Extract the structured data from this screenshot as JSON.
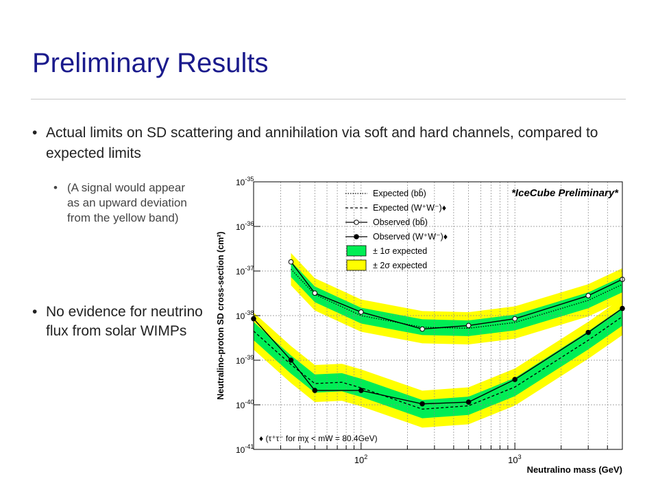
{
  "slide": {
    "title": "Preliminary Results",
    "bullets": [
      {
        "text": "Actual limits on SD scattering and annihilation via soft and hard channels, compared to expected limits"
      },
      {
        "text": "(A signal would appear as an upward deviation from the yellow band)"
      },
      {
        "text": "No evidence for neutrino flux from solar WIMPs"
      }
    ],
    "bullet_glyph": "•"
  },
  "colors": {
    "title": "#1a1a8c",
    "band_1sigma": "#00ee55",
    "band_2sigma": "#ffff00",
    "text": "#222222"
  },
  "chart_data": {
    "type": "line",
    "x_scale": "log",
    "y_scale": "log",
    "xlim": [
      20,
      5000
    ],
    "ylim": [
      1e-41,
      1e-35
    ],
    "xlabel": "Neutralino mass (GeV)",
    "ylabel": "Neutralino-proton SD cross-section (cm²)",
    "x_tick_labels": [
      {
        "value": 100,
        "base": "10",
        "exp": "2"
      },
      {
        "value": 1000,
        "base": "10",
        "exp": "3"
      }
    ],
    "y_tick_labels": [
      {
        "value": 1e-35,
        "base": "10",
        "exp": "-35"
      },
      {
        "value": 1e-36,
        "base": "10",
        "exp": "-36"
      },
      {
        "value": 1e-37,
        "base": "10",
        "exp": "-37"
      },
      {
        "value": 1e-38,
        "base": "10",
        "exp": "-38"
      },
      {
        "value": 1e-39,
        "base": "10",
        "exp": "-39"
      },
      {
        "value": 1e-40,
        "base": "10",
        "exp": "-40"
      },
      {
        "value": 1e-41,
        "base": "10",
        "exp": "-41"
      }
    ],
    "grid_x": [
      20,
      30,
      40,
      50,
      60,
      70,
      80,
      90,
      100,
      200,
      300,
      400,
      500,
      600,
      700,
      800,
      900,
      1000,
      2000,
      3000,
      4000,
      5000
    ],
    "grid": true,
    "annotation": "*IceCube Preliminary*",
    "footnote": "♦ (τ⁺τ⁻ for mχ < mW = 80.4GeV)",
    "legend_position": "top-right",
    "legend": [
      {
        "label": "Expected (bb̄)",
        "kind": "dotted-line"
      },
      {
        "label": "Expected (W⁺W⁻)♦",
        "kind": "dashed-line"
      },
      {
        "label": "Observed (bb̄)",
        "kind": "open-marker"
      },
      {
        "label": "Observed (W⁺W⁻)♦",
        "kind": "filled-marker"
      },
      {
        "label": "± 1σ expected",
        "kind": "green-box"
      },
      {
        "label": "± 2σ expected",
        "kind": "yellow-box"
      }
    ],
    "series": [
      {
        "name": "Observed (bb̄)",
        "marker": "open",
        "x": [
          35,
          50,
          100,
          250,
          500,
          1000,
          3000,
          5000
        ],
        "y": [
          1.6e-37,
          3.2e-38,
          1.2e-38,
          5e-39,
          6e-39,
          8.5e-39,
          2.8e-38,
          6.5e-38
        ]
      },
      {
        "name": "Observed (W⁺W⁻)♦",
        "marker": "filled",
        "x": [
          20,
          35,
          50,
          100,
          250,
          500,
          1000,
          3000,
          5000
        ],
        "y": [
          8.5e-39,
          1e-39,
          2.1e-40,
          2.1e-40,
          1.05e-40,
          1.15e-40,
          3.7e-40,
          4.2e-39,
          1.45e-38
        ]
      },
      {
        "name": "Expected (bb̄)",
        "style": "dotted",
        "x": [
          35,
          50,
          100,
          250,
          500,
          1000,
          3000,
          5000
        ],
        "y": [
          1.1e-37,
          3e-38,
          1e-38,
          5.5e-39,
          5.2e-39,
          7e-39,
          2.2e-38,
          5e-38
        ],
        "band_1sigma_factor": 1.5,
        "band_2sigma_factor": 2.3
      },
      {
        "name": "Expected (W⁺W⁻)♦",
        "style": "dashed",
        "x": [
          20,
          35,
          50,
          75,
          100,
          250,
          500,
          1000,
          3000,
          5000
        ],
        "y": [
          4.5e-39,
          8e-40,
          3e-40,
          3.2e-40,
          2.4e-40,
          8e-41,
          9.5e-41,
          2.5e-40,
          2.8e-39,
          9.5e-39
        ],
        "band_1sigma_factor": 1.6,
        "band_2sigma_factor": 2.6
      }
    ]
  }
}
